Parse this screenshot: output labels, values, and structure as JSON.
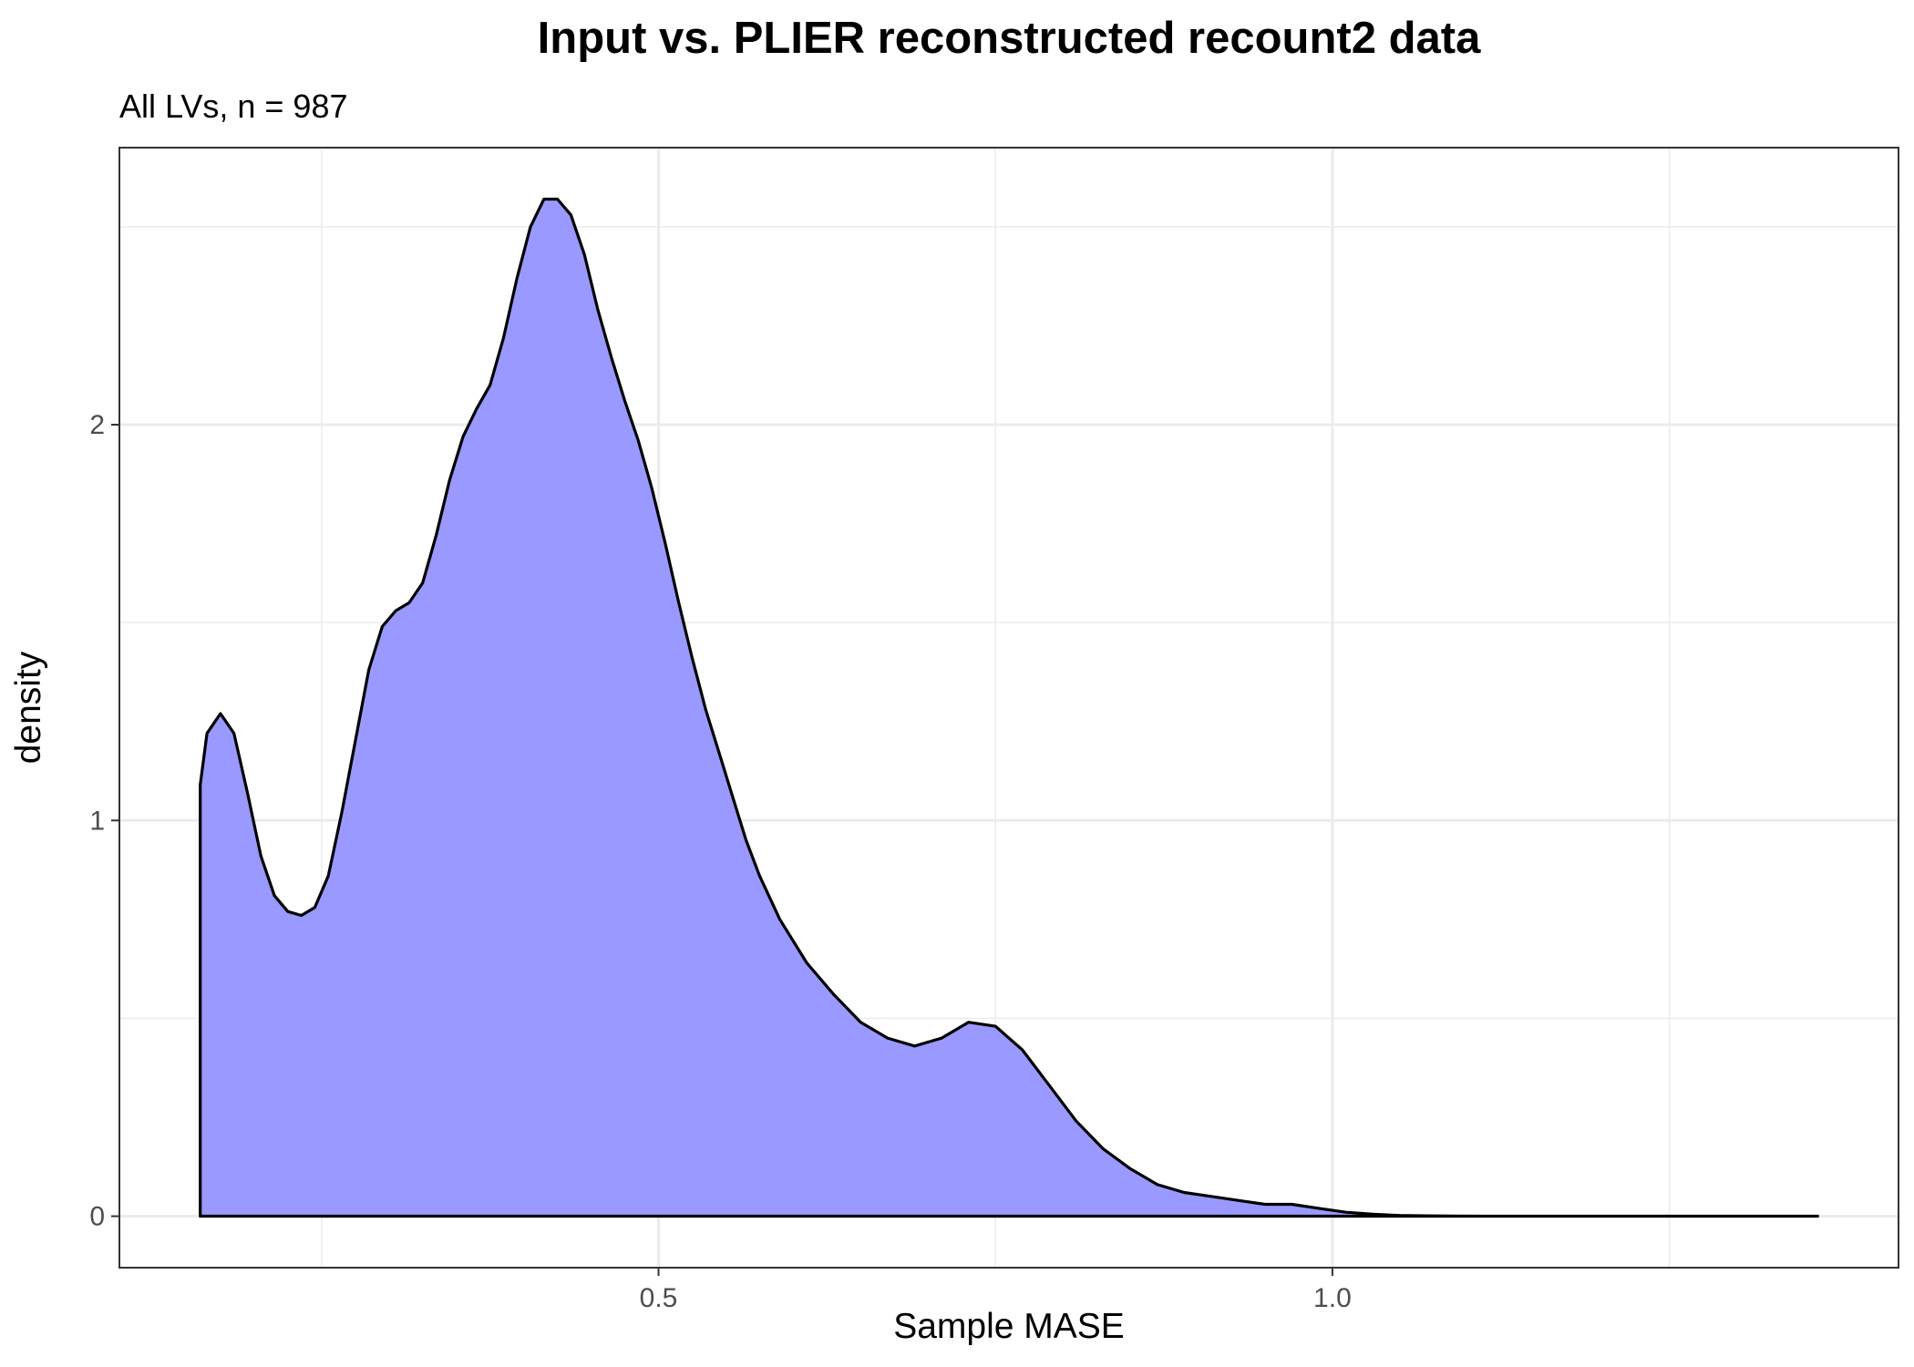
{
  "chart_data": {
    "type": "area",
    "title": "Input vs. PLIER reconstructed recount2 data",
    "subtitle": "All LVs, n = 987",
    "xlabel": "Sample MASE",
    "ylabel": "density",
    "xlim": [
      0.1,
      1.42
    ],
    "ylim": [
      -0.13,
      2.7
    ],
    "x_ticks": [
      0.5,
      1.0
    ],
    "x_tick_labels": [
      "0.5",
      "1.0"
    ],
    "x_minor_ticks": [
      0.25,
      0.75,
      1.25
    ],
    "y_ticks": [
      0,
      1,
      2
    ],
    "y_tick_labels": [
      "0",
      "1",
      "2"
    ],
    "y_minor_ticks": [
      0.5,
      1.5,
      2.5
    ],
    "grid": true,
    "fill_color": "#9999ff",
    "line_color": "#000000",
    "series": [
      {
        "x": [
          0.16,
          0.16,
          0.165,
          0.175,
          0.185,
          0.195,
          0.205,
          0.215,
          0.225,
          0.235,
          0.245,
          0.255,
          0.265,
          0.275,
          0.285,
          0.295,
          0.305,
          0.315,
          0.325,
          0.335,
          0.345,
          0.355,
          0.365,
          0.375,
          0.385,
          0.395,
          0.405,
          0.415,
          0.425,
          0.435,
          0.445,
          0.455,
          0.465,
          0.475,
          0.485,
          0.495,
          0.505,
          0.515,
          0.525,
          0.535,
          0.545,
          0.555,
          0.565,
          0.575,
          0.59,
          0.61,
          0.63,
          0.65,
          0.67,
          0.69,
          0.71,
          0.73,
          0.75,
          0.77,
          0.79,
          0.81,
          0.83,
          0.85,
          0.87,
          0.89,
          0.91,
          0.93,
          0.95,
          0.97,
          0.99,
          1.01,
          1.03,
          1.05,
          1.07,
          1.09,
          1.11,
          1.13,
          1.15,
          1.2,
          1.25,
          1.3,
          1.36
        ],
        "y": [
          0,
          1.09,
          1.22,
          1.27,
          1.22,
          1.07,
          0.91,
          0.81,
          0.77,
          0.76,
          0.78,
          0.86,
          1.02,
          1.2,
          1.38,
          1.49,
          1.53,
          1.55,
          1.6,
          1.72,
          1.86,
          1.97,
          2.04,
          2.1,
          2.22,
          2.37,
          2.5,
          2.57,
          2.57,
          2.53,
          2.43,
          2.29,
          2.17,
          2.06,
          1.96,
          1.84,
          1.7,
          1.55,
          1.41,
          1.28,
          1.17,
          1.06,
          0.95,
          0.86,
          0.75,
          0.64,
          0.56,
          0.49,
          0.45,
          0.43,
          0.45,
          0.49,
          0.48,
          0.42,
          0.33,
          0.24,
          0.17,
          0.12,
          0.08,
          0.06,
          0.05,
          0.04,
          0.03,
          0.03,
          0.02,
          0.01,
          0.005,
          0.002,
          0.001,
          0.0005,
          0.0002,
          0.0001,
          0.0001,
          0,
          0,
          0,
          0
        ]
      }
    ]
  }
}
